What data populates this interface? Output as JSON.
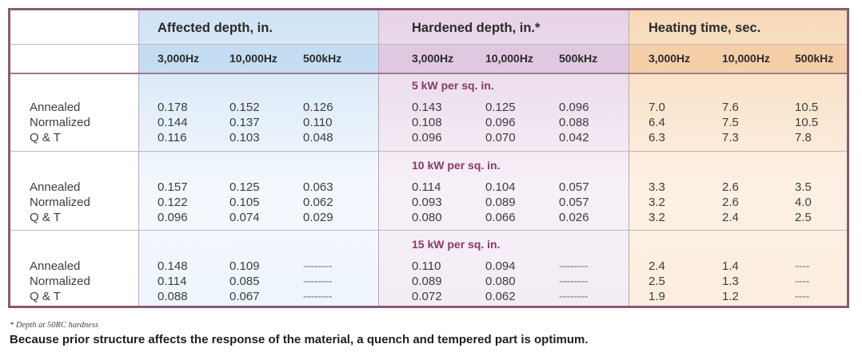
{
  "column_groups": [
    {
      "label": "Affected depth, in."
    },
    {
      "label": "Hardened depth, in.*"
    },
    {
      "label": "Heating time, sec."
    }
  ],
  "frequencies": [
    "3,000Hz",
    "10,000Hz",
    "500kHz",
    "3,000Hz",
    "10,000Hz",
    "500kHz",
    "3,000Hz",
    "10,000Hz",
    "500kHz"
  ],
  "sections": [
    {
      "title": "5 kW per sq. in.",
      "rows": [
        {
          "label": "Annealed",
          "values": [
            "0.178",
            "0.152",
            "0.126",
            "0.143",
            "0.125",
            "0.096",
            "7.0",
            "7.6",
            "10.5"
          ]
        },
        {
          "label": "Normalized",
          "values": [
            "0.144",
            "0.137",
            "0.110",
            "0.108",
            "0.096",
            "0.088",
            "6.4",
            "7.5",
            "10.5"
          ]
        },
        {
          "label": "Q & T",
          "values": [
            "0.116",
            "0.103",
            "0.048",
            "0.096",
            "0.070",
            "0.042",
            "6.3",
            "7.3",
            "7.8"
          ]
        }
      ]
    },
    {
      "title": "10 kW per sq. in.",
      "rows": [
        {
          "label": "Annealed",
          "values": [
            "0.157",
            "0.125",
            "0.063",
            "0.114",
            "0.104",
            "0.057",
            "3.3",
            "2.6",
            "3.5"
          ]
        },
        {
          "label": "Normalized",
          "values": [
            "0.122",
            "0.105",
            "0.062",
            "0.093",
            "0.089",
            "0.057",
            "3.2",
            "2.6",
            "4.0"
          ]
        },
        {
          "label": "Q & T",
          "values": [
            "0.096",
            "0.074",
            "0.029",
            "0.080",
            "0.066",
            "0.026",
            "3.2",
            "2.4",
            "2.5"
          ]
        }
      ]
    },
    {
      "title": "15 kW per sq. in.",
      "rows": [
        {
          "label": "Annealed",
          "values": [
            "0.148",
            "0.109",
            "--------",
            "0.110",
            "0.094",
            "--------",
            "2.4",
            "1.4",
            "----"
          ]
        },
        {
          "label": "Normalized",
          "values": [
            "0.114",
            "0.085",
            "--------",
            "0.089",
            "0.080",
            "--------",
            "2.5",
            "1.3",
            "----"
          ]
        },
        {
          "label": "Q & T",
          "values": [
            "0.088",
            "0.067",
            "--------",
            "0.072",
            "0.062",
            "--------",
            "1.9",
            "1.2",
            "----"
          ]
        }
      ]
    }
  ],
  "footnote": "* Depth at 50RC hardness",
  "summary": "Because prior structure affects the response of the material, a quench and tempered part is optimum.",
  "colors": {
    "border": "#8a5a74",
    "section_title": "#8a3a63",
    "band_blue": "#cfe3f4",
    "band_purple": "#e6d3e6",
    "band_orange": "#f7d9b8"
  }
}
